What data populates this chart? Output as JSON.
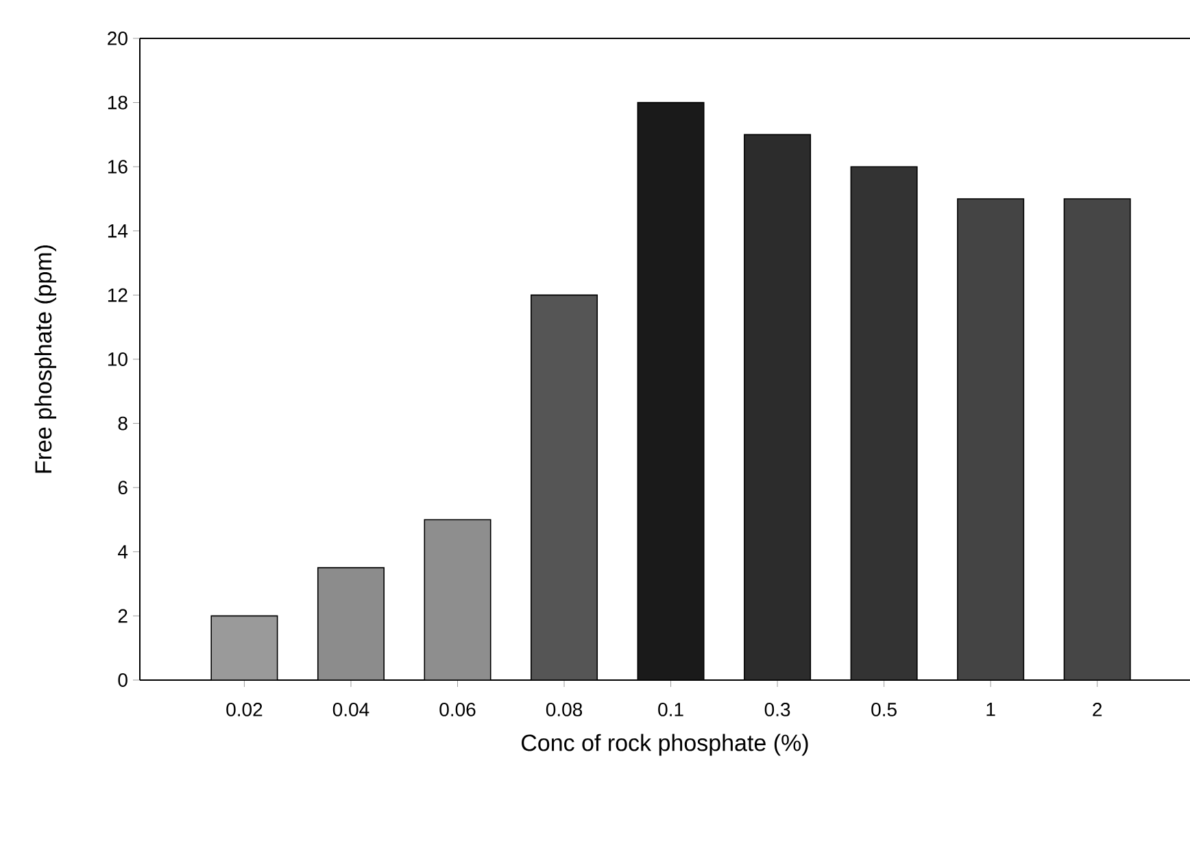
{
  "chart_data": {
    "type": "bar",
    "xlabel": "Conc of  rock phosphate (%)",
    "ylabel": "Free phosphate (ppm)",
    "categories": [
      "0.02",
      "0.04",
      "0.06",
      "0.08",
      "0.1",
      "0.3",
      "0.5",
      "1",
      "2"
    ],
    "values": [
      2,
      3.5,
      5,
      12,
      18,
      17,
      16,
      15,
      15
    ],
    "colors": [
      "#9a9a9a",
      "#8c8c8c",
      "#8e8e8e",
      "#555555",
      "#1a1a1a",
      "#2c2c2c",
      "#333333",
      "#444444",
      "#464646"
    ],
    "ylim": [
      0,
      20
    ],
    "yticks": [
      0,
      2,
      4,
      6,
      8,
      10,
      12,
      14,
      16,
      18,
      20
    ],
    "grid": false
  }
}
